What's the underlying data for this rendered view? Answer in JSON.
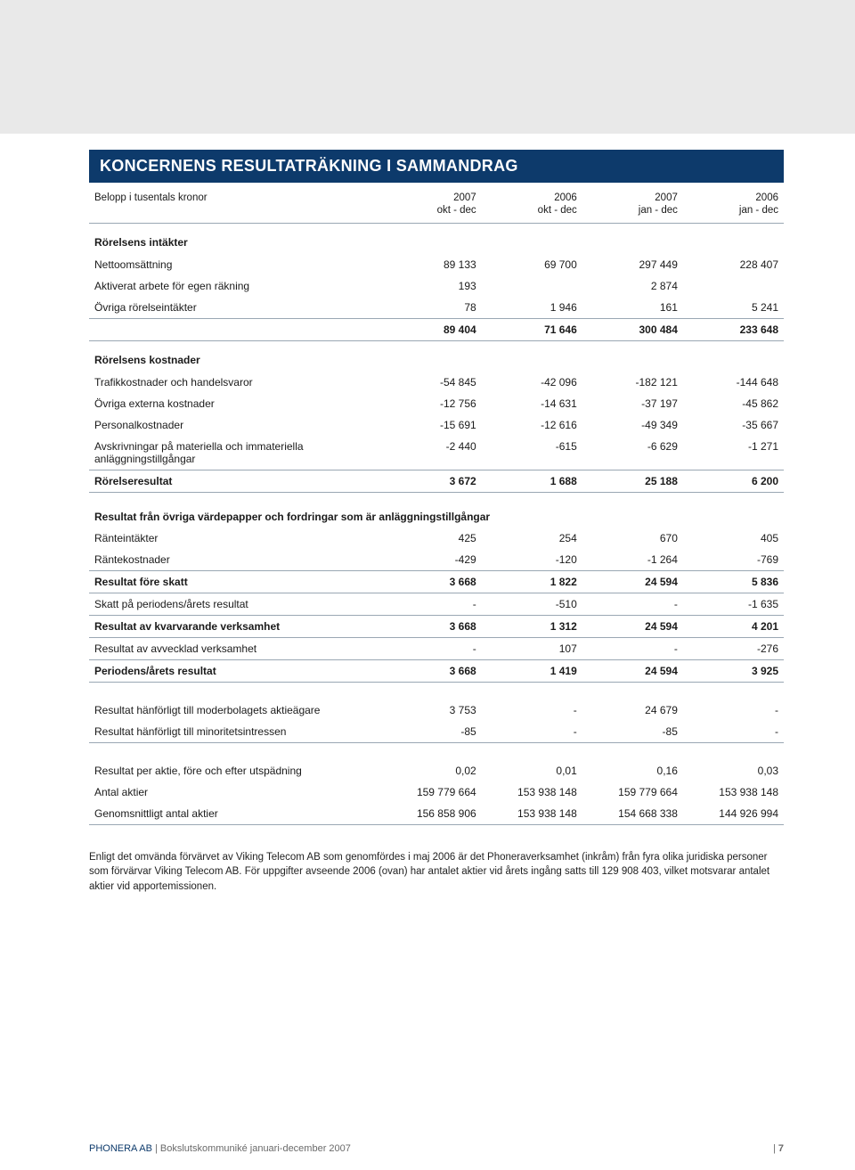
{
  "colors": {
    "header_bg": "#0d3a6b",
    "header_text": "#ffffff",
    "body_text": "#1a1a1a",
    "rule": "#9aa7b3",
    "grey_block": "#e9e9e9",
    "footer_text": "#6a6a6a"
  },
  "title": "KONCERNENS RESULTATRÄKNING I SAMMANDRAG",
  "columns": {
    "label": "Belopp i tusentals kronor",
    "c1a": "2007",
    "c1b": "okt - dec",
    "c2a": "2006",
    "c2b": "okt - dec",
    "c3a": "2007",
    "c3b": "jan - dec",
    "c4a": "2006",
    "c4b": "jan - dec"
  },
  "sections": {
    "s1": "Rörelsens intäkter",
    "s2": "Rörelsens kostnader",
    "s3": "Resultat från övriga värdepapper och fordringar som är anläggningstillgångar"
  },
  "rows": {
    "netto": {
      "l": "Nettoomsättning",
      "v": [
        "89 133",
        "69 700",
        "297 449",
        "228 407"
      ]
    },
    "aktiv": {
      "l": "Aktiverat arbete för egen räkning",
      "v": [
        "193",
        "",
        "2 874",
        ""
      ]
    },
    "ovrigint": {
      "l": "Övriga rörelseintäkter",
      "v": [
        "78",
        "1 946",
        "161",
        "5 241"
      ]
    },
    "sum1": {
      "l": "",
      "v": [
        "89 404",
        "71 646",
        "300 484",
        "233 648"
      ]
    },
    "trafik": {
      "l": "Trafikkostnader och handelsvaror",
      "v": [
        "-54 845",
        "-42 096",
        "-182 121",
        "-144 648"
      ]
    },
    "extkost": {
      "l": "Övriga externa kostnader",
      "v": [
        "-12 756",
        "-14 631",
        "-37 197",
        "-45 862"
      ]
    },
    "pers": {
      "l": "Personalkostnader",
      "v": [
        "-15 691",
        "-12 616",
        "-49 349",
        "-35 667"
      ]
    },
    "avskr": {
      "l": "Avskrivningar på materiella och immateriella anläggningstillgångar",
      "v": [
        "-2 440",
        "-615",
        "-6 629",
        "-1 271"
      ]
    },
    "rores": {
      "l": "Rörelseresultat",
      "v": [
        "3 672",
        "1 688",
        "25 188",
        "6 200"
      ]
    },
    "rantein": {
      "l": "Ränteintäkter",
      "v": [
        "425",
        "254",
        "670",
        "405"
      ]
    },
    "rantek": {
      "l": "Räntekostnader",
      "v": [
        "-429",
        "-120",
        "-1 264",
        "-769"
      ]
    },
    "resfs": {
      "l": "Resultat före skatt",
      "v": [
        "3 668",
        "1 822",
        "24 594",
        "5 836"
      ]
    },
    "skatt": {
      "l": "Skatt på periodens/årets resultat",
      "v": [
        "-",
        "-510",
        "-",
        "-1 635"
      ]
    },
    "reskv": {
      "l": "Resultat av kvarvarande verksamhet",
      "v": [
        "3 668",
        "1 312",
        "24 594",
        "4 201"
      ]
    },
    "resavv": {
      "l": "Resultat av avvecklad verksamhet",
      "v": [
        "-",
        "107",
        "-",
        "-276"
      ]
    },
    "perres": {
      "l": "Periodens/årets resultat",
      "v": [
        "3 668",
        "1 419",
        "24 594",
        "3 925"
      ]
    },
    "moder": {
      "l": "Resultat hänförligt till moderbolagets aktieägare",
      "v": [
        "3 753",
        "-",
        "24 679",
        "-"
      ]
    },
    "minor": {
      "l": "Resultat hänförligt till minoritetsintressen",
      "v": [
        "-85",
        "-",
        "-85",
        "-"
      ]
    },
    "peraktie": {
      "l": "Resultat per aktie, före och efter utspädning",
      "v": [
        "0,02",
        "0,01",
        "0,16",
        "0,03"
      ]
    },
    "antal": {
      "l": "Antal aktier",
      "v": [
        "159 779 664",
        "153 938 148",
        "159 779 664",
        "153 938 148"
      ]
    },
    "genoms": {
      "l": "Genomsnittligt antal aktier",
      "v": [
        "156 858 906",
        "153 938 148",
        "154 668 338",
        "144 926 994"
      ]
    }
  },
  "footnote": "Enligt det omvända förvärvet av Viking Telecom AB som genomfördes i maj 2006 är det Phoneraverksamhet (inkråm) från fyra olika juridiska personer som förvärvar Viking Telecom AB. För uppgifter avseende 2006 (ovan) har antalet aktier vid årets ingång satts till 129 908 403, vilket motsvarar antalet aktier vid apportemissionen.",
  "footer": {
    "pub": "PHONERA AB",
    "doc": " | Bokslutskommuniké januari-december 2007",
    "page_prefix": "| ",
    "page": "7"
  }
}
